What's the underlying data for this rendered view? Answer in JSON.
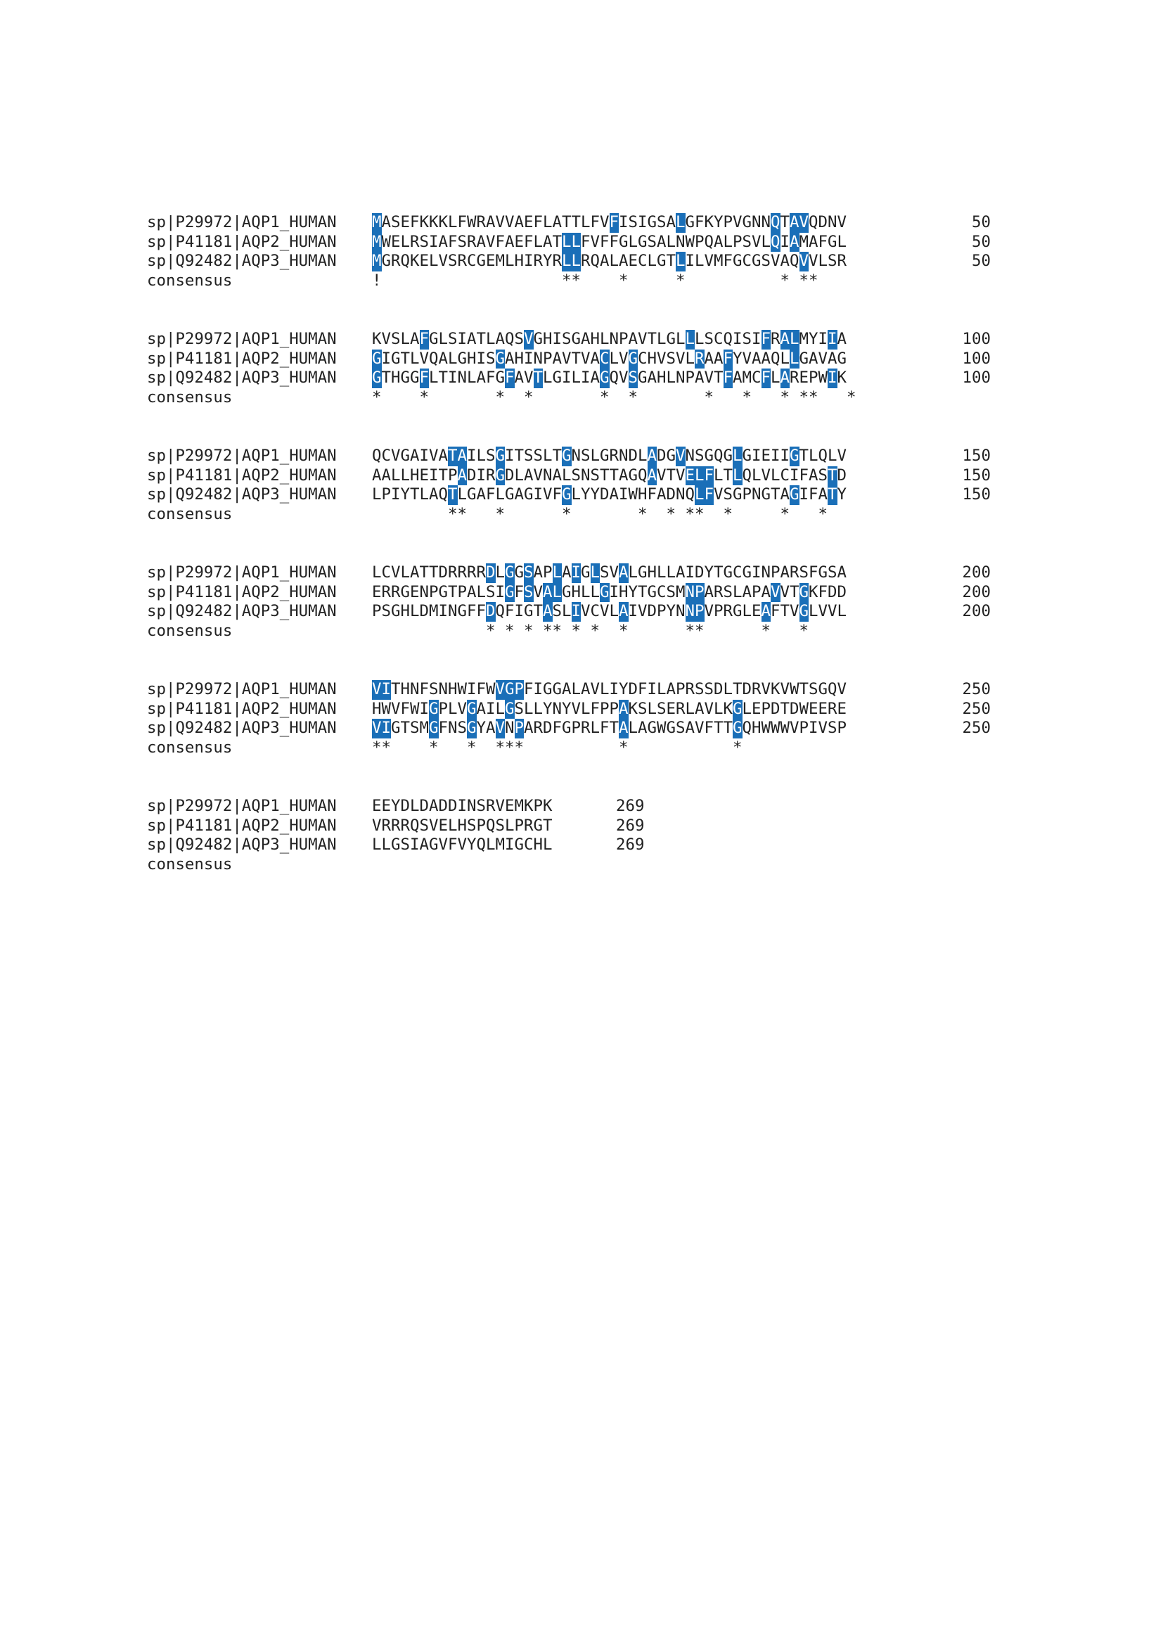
{
  "colors": {
    "highlight_bg": "#1a6fb8",
    "highlight_fg": "#ffffff",
    "text": "#222222"
  },
  "blocks": [
    {
      "rows": [
        {
          "name": "sp|P29972|AQP1_HUMAN",
          "seq": "MASEFKKKLFWRAVVAEFLATTLFVFISIGSALGFKYPVGNNQTAVQDNV",
          "num": "50",
          "highlight": [
            0,
            25,
            32,
            42,
            44,
            45
          ]
        },
        {
          "name": "sp|P41181|AQP2_HUMAN",
          "seq": "MWELRSIAFSRAVFAEFLATLLFVFFGLGSALNWPQALPSVLQIAMAFGL",
          "num": "50",
          "highlight": [
            0,
            20,
            21,
            42,
            44
          ]
        },
        {
          "name": "sp|Q92482|AQP3_HUMAN",
          "seq": "MGRQKELVSRCGEMLHIRYRLLRQALAECLGTLILVMFGCGSVAQVVLSR",
          "num": "50",
          "highlight": [
            0,
            20,
            21,
            32,
            45
          ]
        },
        {
          "name": "consensus",
          "seq": "!                   **    *     *          * **",
          "num": "",
          "highlight": []
        }
      ]
    },
    {
      "rows": [
        {
          "name": "sp|P29972|AQP1_HUMAN",
          "seq": "KVSLAFGLSIATLAQSVGHISGAHLNPAVTLGLLLSCQISIFRALMYIIA",
          "num": "100",
          "highlight": [
            5,
            16,
            33,
            41,
            43,
            44,
            48
          ]
        },
        {
          "name": "sp|P41181|AQP2_HUMAN",
          "seq": "GIGTLVQALGHISGAHINPAVTVACLVGCHVSVLRAAFYVAAQLLGAVAG",
          "num": "100",
          "highlight": [
            0,
            13,
            24,
            27,
            34,
            37,
            44
          ]
        },
        {
          "name": "sp|Q92482|AQP3_HUMAN",
          "seq": "GTHGGFLTINLAFGFAVTLGILIAGQVSGAHLNPAVTFAMCFLAREPWIK",
          "num": "100",
          "highlight": [
            0,
            5,
            14,
            17,
            24,
            27,
            37,
            41,
            43,
            48
          ]
        },
        {
          "name": "consensus",
          "seq": "*    *       *  *       *  *       *   *   * **   *",
          "num": "",
          "highlight": []
        }
      ]
    },
    {
      "rows": [
        {
          "name": "sp|P29972|AQP1_HUMAN",
          "seq": "QCVGAIVATAILSGITSSLTGNSLGRNDLADGVNSGQGLGIEIIGTLQLV",
          "num": "150",
          "highlight": [
            8,
            9,
            13,
            20,
            29,
            32,
            38,
            44
          ]
        },
        {
          "name": "sp|P41181|AQP2_HUMAN",
          "seq": "AALLHEITPADIRGDLAVNALSNSTTAGQAVTVELFLTLQLVLCIFASTD",
          "num": "150",
          "highlight": [
            9,
            13,
            29,
            33,
            34,
            35,
            38,
            48
          ]
        },
        {
          "name": "sp|Q92482|AQP3_HUMAN",
          "seq": "LPIYTLAQTLGAFLGAGIVFGLYYDAIWHFADNQLFVSGPNGTAGIFATY",
          "num": "150",
          "highlight": [
            8,
            20,
            34,
            35,
            44,
            48
          ]
        },
        {
          "name": "consensus",
          "seq": "        **   *      *       *  * **  *     *   *",
          "num": "",
          "highlight": []
        }
      ]
    },
    {
      "rows": [
        {
          "name": "sp|P29972|AQP1_HUMAN",
          "seq": "LCVLATTDRRRRDLGGSAPLAIGLSVALGHLLAIDYTGCGINPARSFGSA",
          "num": "200",
          "highlight": [
            12,
            14,
            16,
            19,
            21,
            23,
            26
          ]
        },
        {
          "name": "sp|P41181|AQP2_HUMAN",
          "seq": "ERRGENPGTPALSIGFSVALGHLLGIHYTGCSMNPARSLAPAVVTGKFDD",
          "num": "200",
          "highlight": [
            14,
            16,
            18,
            19,
            24,
            33,
            34,
            42,
            45
          ]
        },
        {
          "name": "sp|Q92482|AQP3_HUMAN",
          "seq": "PSGHLDMINGFFDQFIGTASLIVCVLAIVDPYNNPVPRGLEAFTVGLVVL",
          "num": "200",
          "highlight": [
            12,
            18,
            21,
            26,
            33,
            34,
            41,
            45
          ]
        },
        {
          "name": "consensus",
          "seq": "            * * * ** * *  *      **      *   *",
          "num": "",
          "highlight": []
        }
      ]
    },
    {
      "rows": [
        {
          "name": "sp|P29972|AQP1_HUMAN",
          "seq": "VITHNFSNHWIFWVGPFIGGALAVLIYDFILAPRSSDLTDRVKVWTSGQV",
          "num": "250",
          "highlight": [
            0,
            1,
            13,
            14,
            15
          ]
        },
        {
          "name": "sp|P41181|AQP2_HUMAN",
          "seq": "HWVFWIGPLVGAILGSLLYNYVLFPPAKSLSERLAVLKGLEPDTDWEERE",
          "num": "250",
          "highlight": [
            6,
            10,
            14,
            26,
            38
          ]
        },
        {
          "name": "sp|Q92482|AQP3_HUMAN",
          "seq": "VIGTSMGFNSGYAVNPARDFGPRLFTALAGWGSAVFTTGQHWWWVPIVSP",
          "num": "250",
          "highlight": [
            0,
            1,
            6,
            10,
            13,
            15,
            26,
            38
          ]
        },
        {
          "name": "consensus",
          "seq": "**    *   *  ***          *           *",
          "num": "",
          "highlight": []
        }
      ]
    },
    {
      "rows": [
        {
          "name": "sp|P29972|AQP1_HUMAN",
          "seq": "EEYDLDADDINSRVEMKPK",
          "num": "269",
          "highlight": []
        },
        {
          "name": "sp|P41181|AQP2_HUMAN",
          "seq": "VRRRQSVELHSPQSLPRGT",
          "num": "269",
          "highlight": []
        },
        {
          "name": "sp|Q92482|AQP3_HUMAN",
          "seq": "LLGSIAGVFVYQLMIGCHL",
          "num": "269",
          "highlight": []
        },
        {
          "name": "consensus",
          "seq": "",
          "num": "",
          "highlight": []
        }
      ]
    }
  ]
}
